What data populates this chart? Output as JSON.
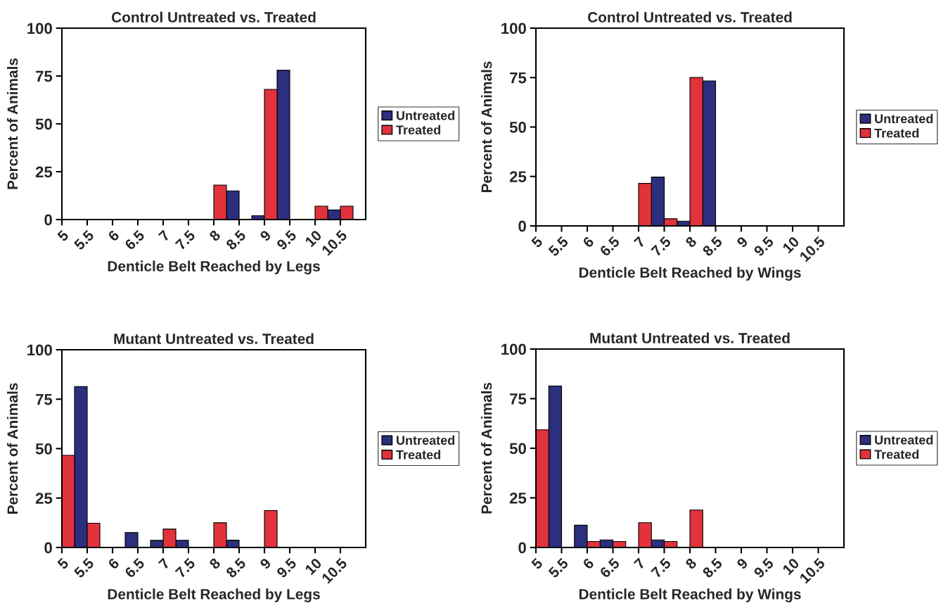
{
  "chart_data": [
    {
      "type": "bar",
      "title": "Control Untreated vs. Treated",
      "xlabel": "Denticle Belt Reached by Legs",
      "ylabel": "Percent of Animals",
      "xlim": [
        5,
        11
      ],
      "xticks": [
        5,
        5.5,
        6,
        6.5,
        7,
        7.5,
        8,
        8.5,
        9,
        9.5,
        10,
        10.5
      ],
      "ylim": [
        0,
        100
      ],
      "yticks": [
        0,
        25,
        50,
        75,
        100
      ],
      "legend": "right",
      "grid": false,
      "series": [
        {
          "name": "Untreated",
          "color": "#2b2f7e",
          "x": [
            8.375,
            8.875,
            9.375,
            10.375
          ],
          "values": [
            15,
            2,
            78,
            5
          ]
        },
        {
          "name": "Treated",
          "color": "#e2323c",
          "x": [
            8.125,
            9.125,
            10.125,
            10.625
          ],
          "values": [
            18,
            68,
            7,
            7
          ]
        }
      ]
    },
    {
      "type": "bar",
      "title": "Control Untreated vs. Treated",
      "xlabel": "Denticle Belt Reached by Wings",
      "ylabel": "Percent of Animals",
      "xlim": [
        5,
        11
      ],
      "xticks": [
        5,
        5.5,
        6,
        6.5,
        7,
        7.5,
        8,
        8.5,
        9,
        9.5,
        10,
        10.5
      ],
      "ylim": [
        0,
        100
      ],
      "yticks": [
        0,
        25,
        50,
        75,
        100
      ],
      "legend": "right",
      "grid": false,
      "series": [
        {
          "name": "Untreated",
          "color": "#2b2f7e",
          "x": [
            7.375,
            7.875,
            8.375
          ],
          "values": [
            24.7,
            2.4,
            73.3
          ]
        },
        {
          "name": "Treated",
          "color": "#e2323c",
          "x": [
            7.125,
            7.625,
            8.125
          ],
          "values": [
            21.5,
            3.6,
            75.1
          ]
        }
      ]
    },
    {
      "type": "bar",
      "title": "Mutant Untreated vs. Treated",
      "xlabel": "Denticle Belt Reached by Legs",
      "ylabel": "Percent of Animals",
      "xlim": [
        5,
        11
      ],
      "xticks": [
        5,
        5.5,
        6,
        6.5,
        7,
        7.5,
        8,
        8.5,
        9,
        9.5,
        10,
        10.5
      ],
      "ylim": [
        0,
        100
      ],
      "yticks": [
        0,
        25,
        50,
        75,
        100
      ],
      "legend": "right",
      "grid": false,
      "series": [
        {
          "name": "Untreated",
          "color": "#2b2f7e",
          "x": [
            5.375,
            6.375,
            6.875,
            7.375,
            8.375
          ],
          "values": [
            81.4,
            7.5,
            3.6,
            3.6,
            3.7
          ]
        },
        {
          "name": "Treated",
          "color": "#e2323c",
          "x": [
            5.125,
            5.625,
            7.125,
            8.125,
            9.125
          ],
          "values": [
            46.6,
            12.3,
            9.3,
            12.5,
            18.7
          ]
        }
      ]
    },
    {
      "type": "bar",
      "title": "Mutant Untreated vs. Treated",
      "xlabel": "Denticle Belt Reached by Wings",
      "ylabel": "Percent of Animals",
      "xlim": [
        5,
        11
      ],
      "xticks": [
        5,
        5.5,
        6,
        6.5,
        7,
        7.5,
        8,
        8.5,
        9,
        9.5,
        10,
        10.5
      ],
      "ylim": [
        0,
        100
      ],
      "yticks": [
        0,
        25,
        50,
        75,
        100
      ],
      "legend": "right",
      "grid": false,
      "series": [
        {
          "name": "Untreated",
          "color": "#2b2f7e",
          "x": [
            5.375,
            5.875,
            6.375,
            7.375
          ],
          "values": [
            81.4,
            11.2,
            3.8,
            3.8
          ]
        },
        {
          "name": "Treated",
          "color": "#e2323c",
          "x": [
            5.125,
            6.125,
            6.625,
            7.125,
            7.625,
            8.125
          ],
          "values": [
            59.3,
            3.0,
            3.0,
            12.5,
            3.0,
            18.9
          ]
        }
      ]
    }
  ]
}
